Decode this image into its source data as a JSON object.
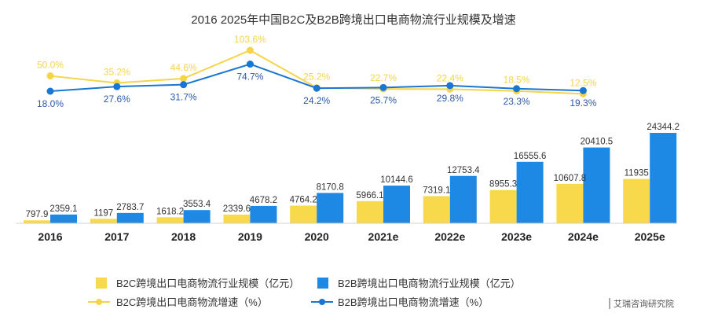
{
  "chart_data": {
    "type": "bar",
    "title": "2016  2025年中国B2C及B2B跨境出口电商物流行业规模及增速",
    "categories": [
      "2016",
      "2017",
      "2018",
      "2019",
      "2020",
      "2021e",
      "2022e",
      "2023e",
      "2024e",
      "2025e"
    ],
    "series": [
      {
        "name": "B2C跨境出口电商物流行业规模（亿元）",
        "kind": "bar",
        "color": "#F8D94B",
        "values": [
          797.9,
          1197,
          1618.2,
          2339.6,
          4764.2,
          5966.1,
          7319.1,
          8955.3,
          10607.8,
          11935
        ],
        "labels": [
          "797.9",
          "1197",
          "1618.2",
          "2339.6",
          "4764.2",
          "5966.1",
          "7319.1",
          "8955.3",
          "10607.8",
          "11935"
        ]
      },
      {
        "name": "B2B跨境出口电商物流行业规模（亿元）",
        "kind": "bar",
        "color": "#1E88E5",
        "values": [
          2359.1,
          2783.7,
          3553.4,
          4678.2,
          8170.8,
          10144.6,
          12753.4,
          16555.6,
          20410.5,
          24344.2
        ],
        "labels": [
          "2359.1",
          "2783.7",
          "3553.4",
          "4678.2",
          "8170.8",
          "10144.6",
          "12753.4",
          "16555.6",
          "20410.5",
          "24344.2"
        ]
      },
      {
        "name": "B2C跨境出口电商物流增速（%）",
        "kind": "line",
        "color": "#F6D449",
        "values": [
          50.0,
          35.2,
          44.6,
          103.6,
          25.2,
          22.7,
          22.4,
          18.5,
          12.5,
          null
        ],
        "labels": [
          "50.0%",
          "35.2%",
          "44.6%",
          "103.6%",
          "25.2%",
          "22.7%",
          "22.4%",
          "18.5%",
          "12.5%",
          ""
        ]
      },
      {
        "name": "B2B跨境出口电商物流增速（%）",
        "kind": "line",
        "color": "#1976D2",
        "values": [
          18.0,
          27.6,
          31.7,
          74.7,
          24.2,
          25.7,
          29.8,
          23.3,
          19.3,
          null
        ],
        "labels": [
          "18.0%",
          "27.6%",
          "31.7%",
          "74.7%",
          "24.2%",
          "25.7%",
          "29.8%",
          "23.3%",
          "19.3%",
          ""
        ]
      }
    ],
    "legend_position": "bottom",
    "grid": false
  },
  "source": "艾瑞咨询研究院"
}
